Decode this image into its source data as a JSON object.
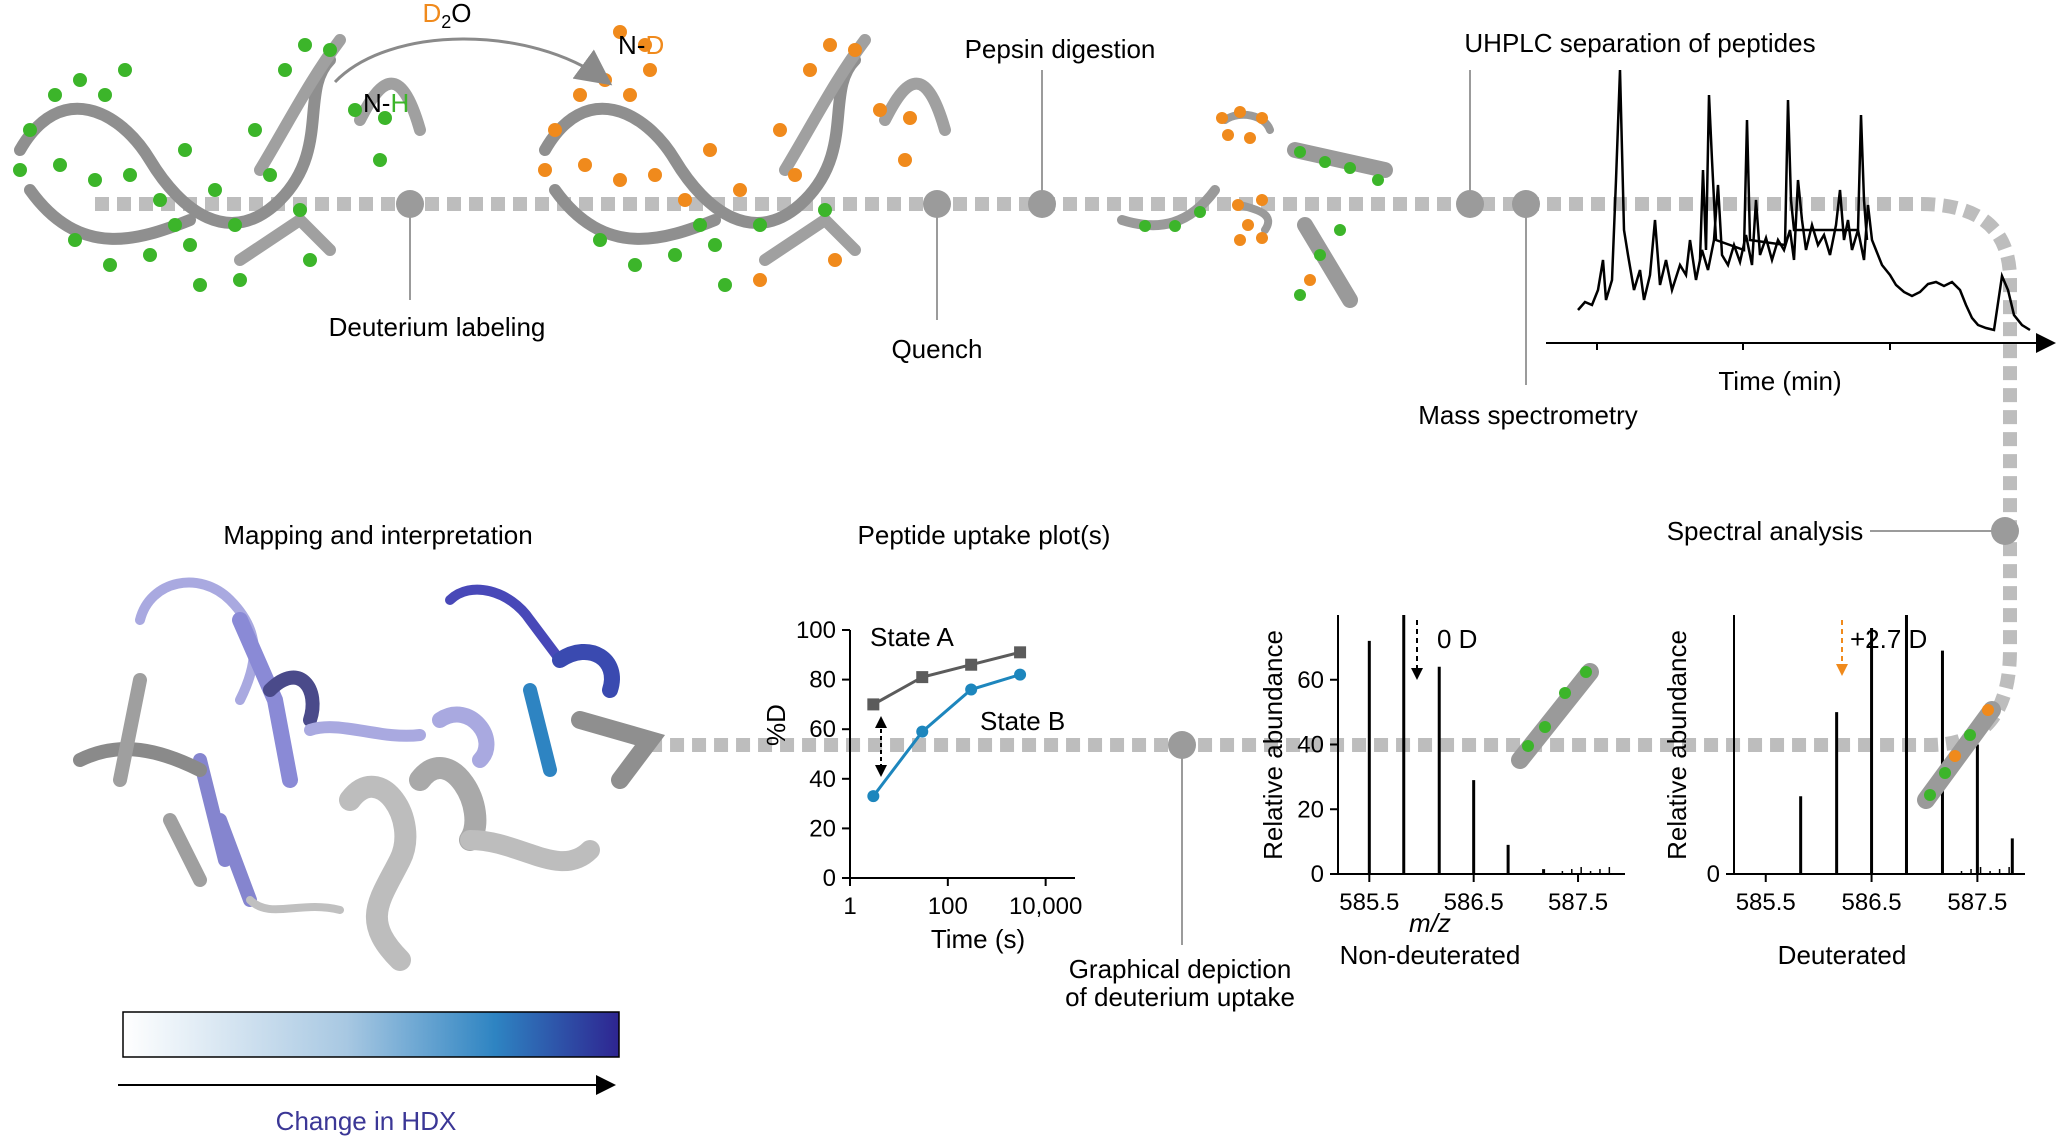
{
  "top": {
    "d2o_d": "D",
    "d2o_sub": "2",
    "d2o_o": "O",
    "nh_n": "N-",
    "nh_h": "H",
    "nd_n": "N-",
    "nd_d": "D",
    "deuterium_labeling": "Deuterium labeling",
    "quench": "Quench",
    "pepsin_digestion": "Pepsin digestion",
    "uhplc": "UHPLC separation of peptides",
    "mass_spec": "Mass spectrometry",
    "time_min": "Time (min)"
  },
  "right": {
    "spectral_analysis": "Spectral analysis"
  },
  "bottom": {
    "mapping": "Mapping and interpretation",
    "uptake_plot_title": "Peptide uptake plot(s)",
    "graphical_line1": "Graphical depiction",
    "graphical_line2": "of deuterium uptake",
    "change_in_hdx": "Change in HDX"
  },
  "spectra": {
    "ylabel": "Relative abundance",
    "xlabel": "m/z",
    "nondeut_caption": "Non-deuterated",
    "deut_caption": "Deuterated",
    "nondeut_shift": "0 D",
    "deut_shift": "+2.7 D",
    "x_ticks": [
      "585.5",
      "586.5",
      "587.5"
    ],
    "nondeut_y_ticks": [
      "0",
      "20",
      "40",
      "60"
    ],
    "deut_y_ticks": [
      "0"
    ]
  },
  "colors": {
    "nh_green": "#3cb52a",
    "nd_orange": "#f08a1c",
    "state_a": "#5b5b5b",
    "state_b": "#1d86bd",
    "pipe": "#bdbdbd",
    "hdx_low": "#ffffff",
    "hdx_mid": "#2e84c2",
    "hdx_high": "#2e2591",
    "hdx_text": "#3b3796"
  },
  "chart_data": [
    {
      "type": "line",
      "title": "Peptide uptake plot(s)",
      "xlabel": "Time (s)",
      "ylabel": "%D",
      "x_scale": "log",
      "x_tick_labels": [
        "1",
        "100",
        "10,000"
      ],
      "y_tick_labels": [
        "0",
        "20",
        "40",
        "60",
        "80",
        "100"
      ],
      "ylim": [
        0,
        100
      ],
      "x": [
        3,
        30,
        300,
        3000
      ],
      "series": [
        {
          "name": "State A",
          "marker": "square",
          "values": [
            70,
            81,
            86,
            91
          ]
        },
        {
          "name": "State B",
          "marker": "circle",
          "values": [
            33,
            59,
            76,
            82
          ]
        }
      ]
    },
    {
      "type": "line",
      "title": "UHPLC separation of peptides",
      "xlabel": "Time (min)",
      "ylabel": "",
      "note": "chromatogram trace, unlabeled intensity axis"
    },
    {
      "type": "bar",
      "title": "Non-deuterated",
      "xlabel": "m/z",
      "ylabel": "Relative abundance",
      "x_tick_labels": [
        "585.5",
        "586.5",
        "587.5"
      ],
      "ylim": [
        0,
        80
      ],
      "x": [
        585.5,
        585.83,
        586.17,
        586.5,
        586.83,
        587.17
      ],
      "values": [
        72,
        80,
        64,
        29,
        9,
        1.5
      ]
    },
    {
      "type": "bar",
      "title": "Deuterated",
      "xlabel": "m/z",
      "ylabel": "Relative abundance",
      "x_tick_labels": [
        "585.5",
        "586.5",
        "587.5"
      ],
      "x": [
        585.83,
        586.17,
        586.5,
        586.83,
        587.17,
        587.5,
        587.83
      ],
      "values": [
        24,
        50,
        76,
        80,
        69,
        40,
        11
      ]
    }
  ]
}
